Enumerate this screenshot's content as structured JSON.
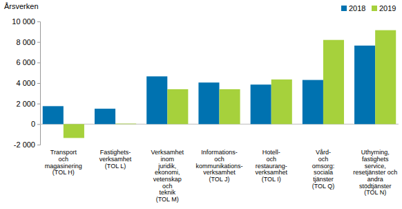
{
  "chart_data": {
    "type": "bar",
    "y_label": "Årsverken",
    "categories": [
      "Transport\noch\nmagasinering\n(TOL H)",
      "Fastighets-\nverksamhet\n(TOL L)",
      "Verksamhet\ninom\njuridik,\nekonomi,\nvetenskap\noch\nteknik\n(TOL M)",
      "Informations-\noch\nkommunikations-\nverksamhet\n(TOL J)",
      "Hotell-\noch\nrestaurang-\nverksamhet\n(TOL I)",
      "Vård-\noch\nomsorg:\nsociala\ntjänster\n(TOL Q)",
      "Uthyrning,\nfastighets\nservice,\nresetjänster och\nandra\nstödtjänster\n(TOL N)"
    ],
    "series": [
      {
        "name": "2018",
        "color": "#0072b0",
        "values": [
          1750,
          1500,
          4650,
          4050,
          3850,
          4300,
          7650
        ]
      },
      {
        "name": "2019",
        "color": "#a6d13c",
        "values": [
          -1350,
          50,
          3400,
          3400,
          4350,
          8200,
          9150
        ]
      }
    ],
    "ylim": [
      -2000,
      10000
    ],
    "yticks": [
      {
        "value": -2000,
        "label": "-2 000"
      },
      0,
      {
        "value": 2000,
        "label": "2 000"
      },
      {
        "value": 4000,
        "label": "4 000"
      },
      {
        "value": 6000,
        "label": "6 000"
      },
      {
        "value": 8000,
        "label": "8 000"
      },
      {
        "value": 10000,
        "label": "10 000"
      }
    ],
    "grid": false,
    "legend": "top-right"
  }
}
